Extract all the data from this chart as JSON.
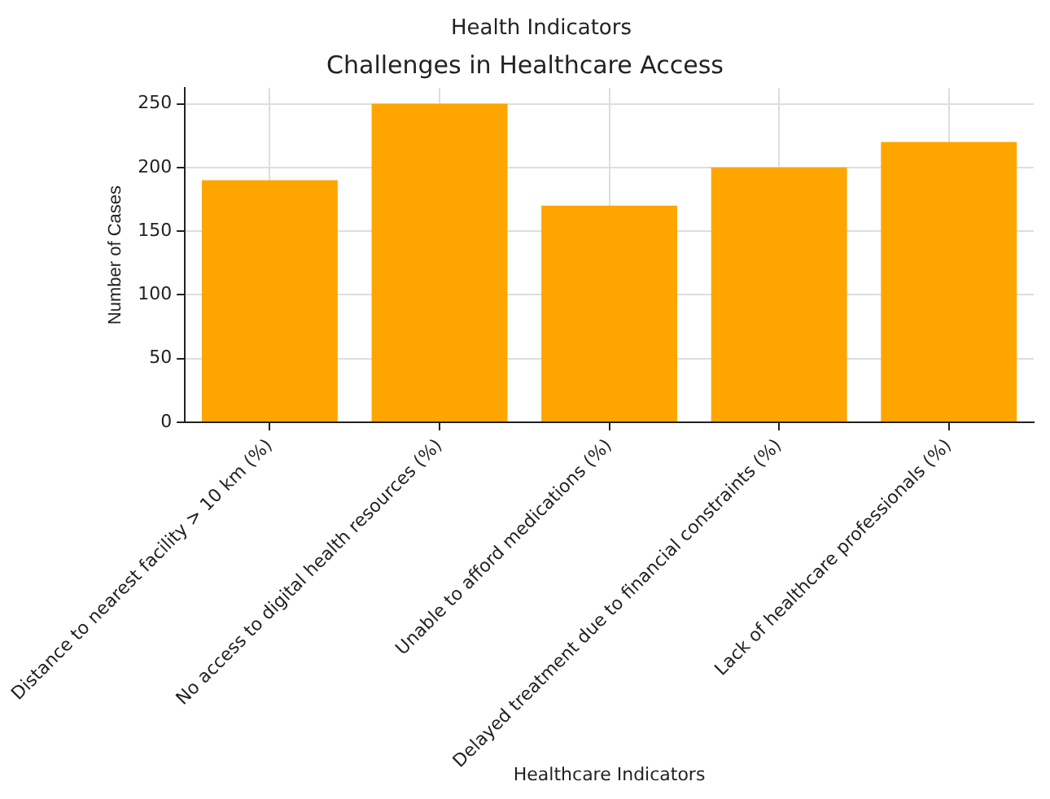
{
  "chart_data": {
    "type": "bar",
    "subtitle": "Health Indicators",
    "title": "Challenges in Healthcare Access",
    "xlabel": "Healthcare Indicators",
    "ylabel": "Number of Cases",
    "categories": [
      "Distance to nearest facility > 10 km (%)",
      "No access to digital health resources (%)",
      "Unable to afford medications (%)",
      "Delayed treatment due to financial constraints (%)",
      "Lack of healthcare professionals (%)"
    ],
    "values": [
      190,
      250,
      170,
      200,
      220
    ],
    "color": "#ffa500",
    "ylim": [
      0,
      262.5
    ],
    "yticks": [
      0,
      50,
      100,
      150,
      200,
      250
    ],
    "grid": true
  }
}
